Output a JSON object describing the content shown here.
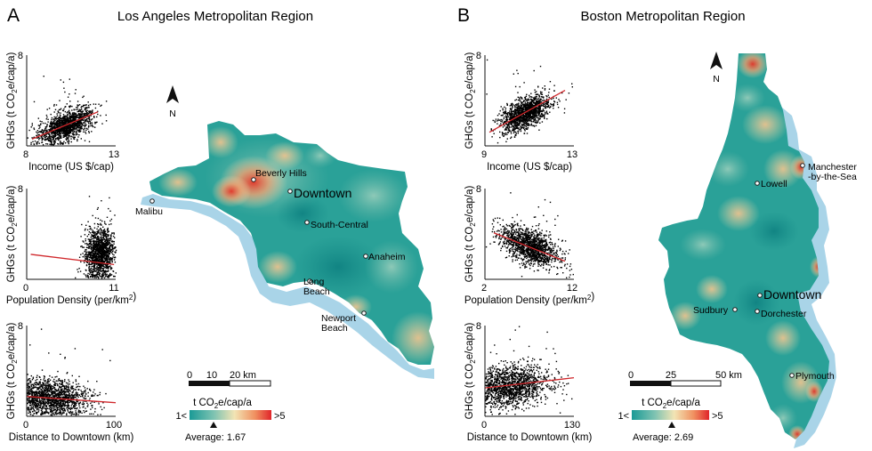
{
  "panels": [
    {
      "letter": "A",
      "title": "Los Angeles Metropolitan Region",
      "scatters": [
        {
          "x_label": "Income (US $/cap)",
          "x_min": "8",
          "x_max": "13",
          "y_max": "8",
          "y_label": "GHGs (t CO2e/cap/a)",
          "xlim": [
            8,
            13
          ],
          "ylim": [
            0,
            8
          ],
          "trend": [
            [
              8.3,
              0.6
            ],
            [
              12.0,
              3.0
            ]
          ],
          "cloud": {
            "cx": 10.2,
            "cy": 1.8,
            "sx": 0.75,
            "sy": 0.75,
            "corr": 0.55
          }
        },
        {
          "x_label": "Population Density (per/km2)",
          "x_min": "0",
          "x_max": "11",
          "y_max": "8",
          "y_label": "GHGs (t CO2e/cap/a)",
          "xlim": [
            0,
            11
          ],
          "ylim": [
            0,
            8
          ],
          "trend": [
            [
              0.5,
              2.2
            ],
            [
              10.8,
              1.3
            ]
          ],
          "cloud": {
            "cx": 9.0,
            "cy": 2.3,
            "sx": 0.9,
            "sy": 1.1,
            "corr": 0.1
          }
        },
        {
          "x_label": "Distance to Downtown (km)",
          "x_min": "0",
          "x_max": "100",
          "y_max": "8",
          "y_label": "GHGs (t CO2e/cap/a)",
          "xlim": [
            0,
            100
          ],
          "ylim": [
            0,
            8
          ],
          "trend": [
            [
              0,
              1.75
            ],
            [
              100,
              1.2
            ]
          ],
          "cloud": {
            "cx": 28,
            "cy": 1.7,
            "sx": 20,
            "sy": 0.8,
            "corr": -0.1
          }
        }
      ],
      "map": {
        "north": "N",
        "places": [
          "Beverly Hills",
          "Downtown",
          "Malibu",
          "South-Central",
          "Anaheim",
          "Long Beach",
          "Newport Beach"
        ],
        "scale_labels": [
          "0",
          "10",
          "20 km"
        ],
        "legend_title": "t CO2e/cap/a",
        "legend_min": "1<",
        "legend_max": ">5",
        "average_label": "Average: 1.67"
      }
    },
    {
      "letter": "B",
      "title": "Boston Metropolitan Region",
      "scatters": [
        {
          "x_label": "Income (US $/cap)",
          "x_min": "9",
          "x_max": "13",
          "y_max": "8",
          "y_label": "GHGs (t CO2e/cap/a)",
          "xlim": [
            9,
            13
          ],
          "ylim": [
            0,
            8
          ],
          "trend": [
            [
              9.2,
              1.2
            ],
            [
              12.6,
              4.9
            ]
          ],
          "cloud": {
            "cx": 10.8,
            "cy": 2.9,
            "sx": 0.55,
            "sy": 0.8,
            "corr": 0.6
          }
        },
        {
          "x_label": "Population Density (per/km2)",
          "x_min": "2",
          "x_max": "12",
          "y_max": "8",
          "y_label": "GHGs (t CO2e/cap/a)",
          "xlim": [
            2,
            12
          ],
          "ylim": [
            0,
            8
          ],
          "trend": [
            [
              3.0,
              4.1
            ],
            [
              11.0,
              1.6
            ]
          ],
          "cloud": {
            "cx": 7.0,
            "cy": 2.9,
            "sx": 1.6,
            "sy": 0.9,
            "corr": -0.5
          }
        },
        {
          "x_label": "Distance to Downtown (km)",
          "x_min": "0",
          "x_max": "130",
          "y_max": "8",
          "y_label": "GHGs (t CO2e/cap/a)",
          "xlim": [
            0,
            130
          ],
          "ylim": [
            0,
            8
          ],
          "trend": [
            [
              0,
              2.5
            ],
            [
              130,
              3.4
            ]
          ],
          "cloud": {
            "cx": 40,
            "cy": 2.7,
            "sx": 27,
            "sy": 0.9,
            "corr": 0.15
          }
        }
      ],
      "map": {
        "north": "N",
        "places": [
          "Manchester -by-the-Sea",
          "Lowell",
          "Downtown",
          "Sudbury",
          "Dorchester",
          "Plymouth"
        ],
        "scale_labels": [
          "0",
          "25",
          "50 km"
        ],
        "legend_title": "t CO2e/cap/a",
        "legend_min": "1<",
        "legend_max": ">5",
        "average_label": "Average: 2.69"
      }
    }
  ],
  "colors": {
    "low": "#1d9e98",
    "mid": "#efe0ad",
    "high": "#e0322a",
    "water": "#a9d4e8",
    "trend": "#d0282c"
  }
}
